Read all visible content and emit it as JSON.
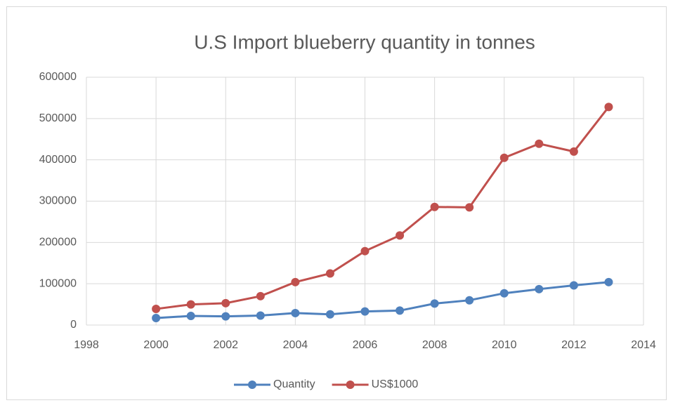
{
  "chart_data": {
    "type": "line",
    "title": "U.S Import blueberry quantity in tonnes",
    "x": [
      2000,
      2001,
      2002,
      2003,
      2004,
      2005,
      2006,
      2007,
      2008,
      2009,
      2010,
      2011,
      2012,
      2013
    ],
    "series": [
      {
        "name": "Quantity",
        "color": "#4f81bd",
        "values": [
          17000,
          22000,
          21000,
          23000,
          29000,
          26000,
          33000,
          35000,
          52000,
          60000,
          77000,
          87000,
          96000,
          104000
        ]
      },
      {
        "name": "US$1000",
        "color": "#c0504d",
        "values": [
          39000,
          50000,
          53000,
          70000,
          104000,
          125000,
          179000,
          217000,
          286000,
          285000,
          405000,
          439000,
          420000,
          528000
        ]
      }
    ],
    "xlim": [
      1998,
      2014
    ],
    "xticks": [
      1998,
      2000,
      2002,
      2004,
      2006,
      2008,
      2010,
      2012,
      2014
    ],
    "ylim": [
      0,
      600000
    ],
    "yticks": [
      0,
      100000,
      200000,
      300000,
      400000,
      500000,
      600000
    ],
    "grid": true,
    "legend": "bottom"
  }
}
